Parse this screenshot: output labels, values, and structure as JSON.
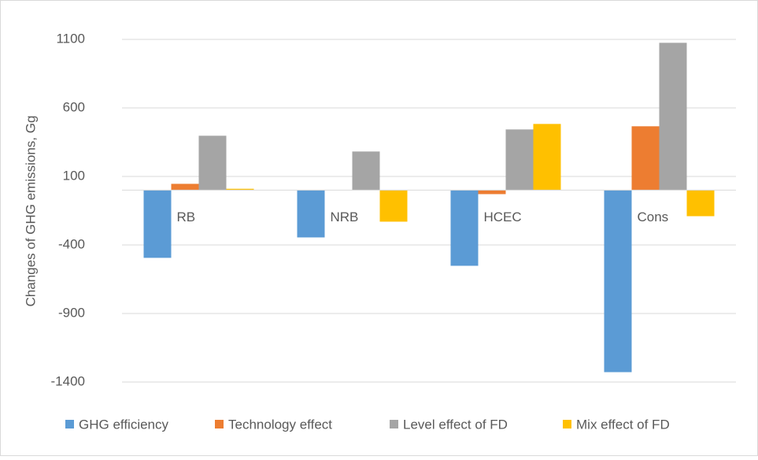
{
  "chart_data": {
    "type": "bar",
    "y_label": "Changes of GHG emissions, Gg",
    "categories": [
      "RB",
      "NRB",
      "HCEC",
      "Cons"
    ],
    "series": [
      {
        "name": "GHG efficiency",
        "color": "#5b9bd5",
        "values": [
          -494,
          -345,
          -552,
          -1328
        ]
      },
      {
        "name": "Technology effect",
        "color": "#ed7d31",
        "values": [
          46,
          0,
          -29,
          466
        ]
      },
      {
        "name": "Level effect of FD",
        "color": "#a5a5a5",
        "values": [
          397,
          282,
          443,
          1075
        ]
      },
      {
        "name": "Mix effect of FD",
        "color": "#ffc000",
        "values": [
          10,
          -230,
          483,
          -190
        ]
      }
    ],
    "ylim": [
      -1400,
      1100
    ],
    "yticks": [
      -1400,
      -900,
      -400,
      100,
      600,
      1100
    ],
    "grid": true
  }
}
